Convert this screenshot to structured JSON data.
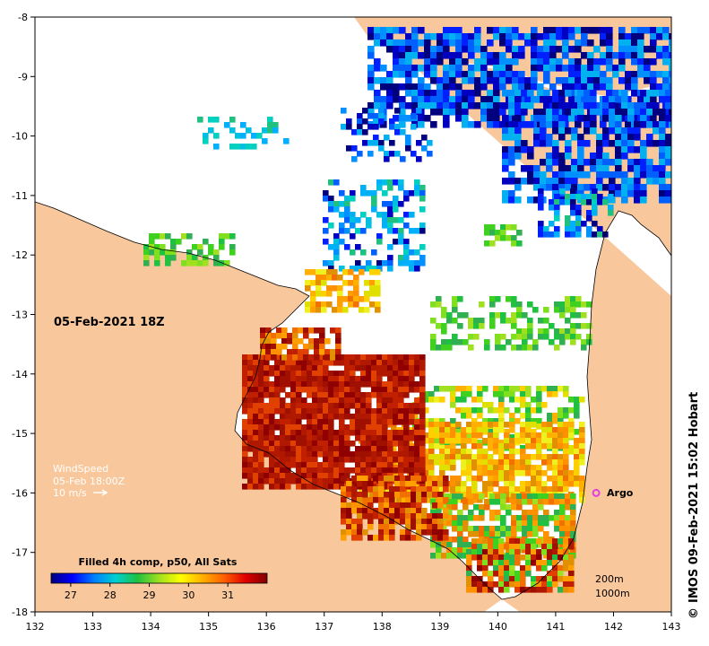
{
  "map": {
    "x_ticks": [
      "132",
      "133",
      "134",
      "135",
      "136",
      "137",
      "138",
      "139",
      "140",
      "141",
      "142",
      "143"
    ],
    "y_ticks": [
      "-8",
      "-9",
      "-10",
      "-11",
      "-12",
      "-13",
      "-14",
      "-15",
      "-16",
      "-17",
      "-18"
    ],
    "x_range": [
      132,
      143
    ],
    "y_range": [
      -18,
      -8
    ],
    "land_color": "#f8c89c",
    "date_label": "05-Feb-2021 18Z",
    "wind": {
      "line1": "WindSpeed",
      "line2": "05-Feb 18:00Z",
      "line3": "10 m/s",
      "arrow_icon": "arrow-right-icon"
    },
    "argo": {
      "label": "Argo",
      "lon": 141.7,
      "lat": -16.0,
      "color": "#e040e0"
    },
    "colorbar": {
      "title": "Filled 4h comp, p50, All Sats",
      "ticks": [
        "27",
        "28",
        "29",
        "30",
        "31"
      ],
      "range": [
        26.5,
        32.0
      ],
      "colors": [
        "#00007f",
        "#0000ff",
        "#0080ff",
        "#00d0d0",
        "#20c040",
        "#a0e020",
        "#ffff00",
        "#ffb000",
        "#ff6000",
        "#e00000",
        "#800000"
      ]
    },
    "contours": {
      "line1": "200m",
      "line2": "1000m"
    },
    "credit": "IMOS 09-Feb-2021 15:02 Hobart",
    "credit_symbol": "©"
  }
}
